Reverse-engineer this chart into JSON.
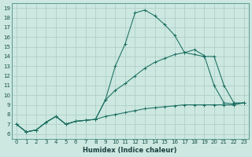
{
  "title": "",
  "xlabel": "Humidex (Indice chaleur)",
  "xlim": [
    -0.5,
    23.5
  ],
  "ylim": [
    5.5,
    19.5
  ],
  "xticks": [
    0,
    1,
    2,
    3,
    4,
    5,
    6,
    7,
    8,
    9,
    10,
    11,
    12,
    13,
    14,
    15,
    16,
    17,
    18,
    19,
    20,
    21,
    22,
    23
  ],
  "yticks": [
    6,
    7,
    8,
    9,
    10,
    11,
    12,
    13,
    14,
    15,
    16,
    17,
    18,
    19
  ],
  "bg_color": "#cce8e0",
  "grid_color": "#b0d0c8",
  "line_color": "#1a6e60",
  "lines": [
    {
      "x": [
        0,
        1,
        2,
        3,
        4,
        5,
        6,
        7,
        8,
        9,
        10,
        11,
        12,
        13,
        14,
        15,
        16,
        17,
        18,
        19,
        20,
        21,
        22,
        23
      ],
      "y": [
        7.0,
        6.2,
        6.4,
        7.2,
        7.8,
        7.0,
        7.3,
        7.4,
        7.5,
        9.5,
        13.0,
        15.3,
        18.5,
        18.8,
        18.2,
        17.3,
        16.2,
        14.4,
        14.7,
        14.1,
        11.0,
        9.2,
        9.1,
        9.2
      ]
    },
    {
      "x": [
        0,
        1,
        2,
        3,
        4,
        5,
        6,
        7,
        8,
        9,
        10,
        11,
        12,
        13,
        14,
        15,
        16,
        17,
        18,
        19,
        20,
        21,
        22,
        23
      ],
      "y": [
        7.0,
        6.2,
        6.4,
        7.2,
        7.8,
        7.0,
        7.3,
        7.4,
        7.5,
        9.5,
        10.5,
        11.2,
        12.0,
        12.8,
        13.4,
        13.8,
        14.2,
        14.4,
        14.2,
        14.0,
        14.0,
        11.0,
        9.2,
        9.2
      ]
    },
    {
      "x": [
        0,
        1,
        2,
        3,
        4,
        5,
        6,
        7,
        8,
        9,
        10,
        11,
        12,
        13,
        14,
        15,
        16,
        17,
        18,
        19,
        20,
        21,
        22,
        23
      ],
      "y": [
        7.0,
        6.2,
        6.4,
        7.2,
        7.8,
        7.0,
        7.3,
        7.4,
        7.5,
        7.8,
        8.0,
        8.2,
        8.4,
        8.6,
        8.7,
        8.8,
        8.9,
        9.0,
        9.0,
        9.0,
        9.0,
        9.0,
        9.0,
        9.2
      ]
    }
  ]
}
